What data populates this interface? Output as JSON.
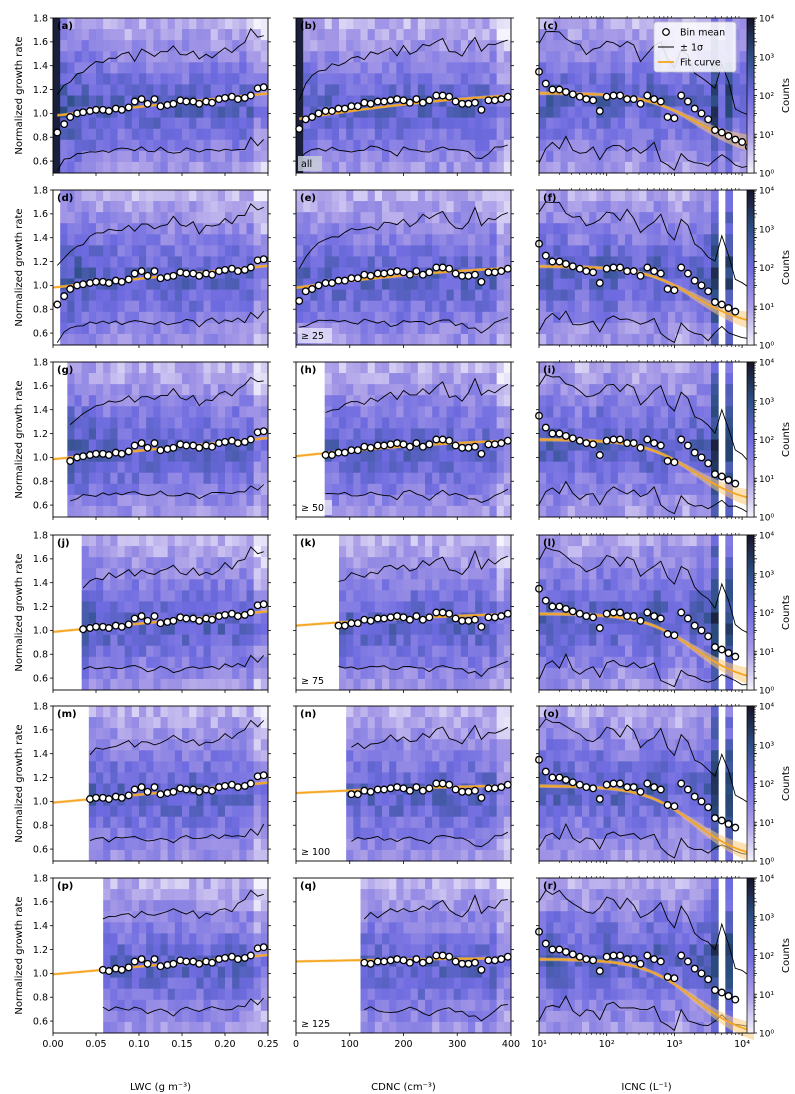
{
  "chart_data": {
    "type": "heatmap",
    "layout": "6 rows x 3 columns",
    "legend": {
      "placement": "top-right of panel (c)",
      "entries": [
        "Bin mean",
        "± 1σ",
        "Fit curve"
      ]
    },
    "colorbar": {
      "label": "Counts",
      "scale": "log",
      "range": [
        1,
        10000
      ],
      "ticks": [
        "10⁰",
        "10¹",
        "10²",
        "10³",
        "10⁴"
      ],
      "colormap": [
        "#f5f3fc",
        "#a99ce7",
        "#6e6be0",
        "#2c4f85",
        "#161328"
      ]
    },
    "colors": {
      "bin_mean_marker": "#ffffff",
      "sigma_line": "#000000",
      "fit_curve": "#f5a623",
      "fit_band": "#f9c979"
    },
    "ylabel": "Normalized growth rate",
    "ylim": [
      0.5,
      1.8
    ],
    "yticks": [
      "0.6",
      "0.8",
      "1.0",
      "1.2",
      "1.4",
      "1.6",
      "1.8"
    ],
    "columns": [
      {
        "xlabel": "LWC (g m⁻³)",
        "xscale": "linear",
        "xlim": [
          0,
          0.25
        ],
        "xticks": [
          "0.00",
          "0.05",
          "0.10",
          "0.15",
          "0.20",
          "0.25"
        ],
        "xtick_values": [
          0,
          0.05,
          0.1,
          0.15,
          0.2,
          0.25
        ]
      },
      {
        "xlabel": "CDNC (cm⁻³)",
        "xscale": "linear",
        "xlim": [
          0,
          400
        ],
        "xticks": [
          "0",
          "100",
          "200",
          "300",
          "400"
        ],
        "xtick_values": [
          0,
          100,
          200,
          300,
          400
        ]
      },
      {
        "xlabel": "ICNC (L⁻¹)",
        "xscale": "log",
        "xlim": [
          10,
          15000
        ],
        "xticks": [
          "10¹",
          "10²",
          "10³",
          "10⁴"
        ],
        "xtick_values": [
          10,
          100,
          1000,
          10000
        ]
      }
    ],
    "rows": [
      {
        "threshold": "all",
        "panels": [
          "(a)",
          "(b)",
          "(c)"
        ]
      },
      {
        "threshold": "≥ 25",
        "panels": [
          "(d)",
          "(e)",
          "(f)"
        ]
      },
      {
        "threshold": "≥ 50",
        "panels": [
          "(g)",
          "(h)",
          "(i)"
        ]
      },
      {
        "threshold": "≥ 75",
        "panels": [
          "(j)",
          "(k)",
          "(l)"
        ]
      },
      {
        "threshold": "≥ 100",
        "panels": [
          "(m)",
          "(n)",
          "(o)"
        ]
      },
      {
        "threshold": "≥ 125",
        "panels": [
          "(p)",
          "(q)",
          "(r)"
        ]
      }
    ],
    "series": {
      "lwc_x": [
        0.005,
        0.013,
        0.02,
        0.028,
        0.035,
        0.043,
        0.05,
        0.058,
        0.065,
        0.073,
        0.08,
        0.088,
        0.095,
        0.103,
        0.11,
        0.118,
        0.125,
        0.133,
        0.14,
        0.148,
        0.155,
        0.163,
        0.17,
        0.178,
        0.185,
        0.193,
        0.2,
        0.208,
        0.215,
        0.223,
        0.23,
        0.238,
        0.245
      ],
      "lwc_mean": [
        0.84,
        0.91,
        0.97,
        1.0,
        1.01,
        1.02,
        1.03,
        1.03,
        1.02,
        1.04,
        1.03,
        1.05,
        1.1,
        1.12,
        1.08,
        1.12,
        1.06,
        1.07,
        1.08,
        1.11,
        1.1,
        1.1,
        1.08,
        1.1,
        1.09,
        1.12,
        1.13,
        1.14,
        1.12,
        1.13,
        1.15,
        1.21,
        1.22
      ],
      "lwc_upper": [
        1.18,
        1.22,
        1.28,
        1.33,
        1.35,
        1.4,
        1.43,
        1.44,
        1.47,
        1.46,
        1.48,
        1.5,
        1.45,
        1.52,
        1.5,
        1.48,
        1.5,
        1.52,
        1.56,
        1.5,
        1.48,
        1.52,
        1.45,
        1.5,
        1.48,
        1.52,
        1.55,
        1.53,
        1.57,
        1.6,
        1.69,
        1.63,
        1.66
      ],
      "lwc_lower": [
        0.52,
        0.6,
        0.64,
        0.66,
        0.67,
        0.68,
        0.67,
        0.7,
        0.68,
        0.7,
        0.69,
        0.69,
        0.7,
        0.7,
        0.67,
        0.68,
        0.7,
        0.68,
        0.66,
        0.68,
        0.7,
        0.69,
        0.67,
        0.7,
        0.71,
        0.69,
        0.7,
        0.71,
        0.71,
        0.7,
        0.78,
        0.72,
        0.79
      ],
      "cdnc_x": [
        6,
        18,
        30,
        42,
        55,
        67,
        79,
        91,
        103,
        115,
        127,
        139,
        152,
        164,
        176,
        188,
        200,
        212,
        224,
        236,
        248,
        261,
        273,
        285,
        297,
        309,
        321,
        333,
        345,
        358,
        370,
        382,
        394
      ],
      "cdnc_mean": [
        0.87,
        0.95,
        0.97,
        1.0,
        1.02,
        1.02,
        1.04,
        1.04,
        1.06,
        1.06,
        1.09,
        1.08,
        1.1,
        1.1,
        1.11,
        1.12,
        1.11,
        1.09,
        1.12,
        1.09,
        1.11,
        1.15,
        1.15,
        1.14,
        1.1,
        1.08,
        1.08,
        1.09,
        1.03,
        1.11,
        1.11,
        1.12,
        1.14
      ],
      "cdnc_upper": [
        1.12,
        1.24,
        1.3,
        1.34,
        1.38,
        1.4,
        1.42,
        1.44,
        1.47,
        1.48,
        1.46,
        1.5,
        1.48,
        1.52,
        1.54,
        1.5,
        1.55,
        1.51,
        1.52,
        1.58,
        1.55,
        1.6,
        1.62,
        1.52,
        1.5,
        1.48,
        1.55,
        1.65,
        1.52,
        1.58,
        1.56,
        1.6,
        1.62
      ],
      "cdnc_lower": [
        0.63,
        0.66,
        0.68,
        0.69,
        0.7,
        0.7,
        0.71,
        0.7,
        0.68,
        0.69,
        0.7,
        0.71,
        0.7,
        0.69,
        0.67,
        0.66,
        0.7,
        0.71,
        0.69,
        0.68,
        0.66,
        0.7,
        0.71,
        0.7,
        0.68,
        0.69,
        0.66,
        0.64,
        0.62,
        0.66,
        0.7,
        0.72,
        0.74
      ],
      "icnc_x": [
        10,
        12.6,
        15.8,
        20,
        25,
        31.6,
        40,
        50,
        63,
        79,
        100,
        126,
        158,
        200,
        251,
        316,
        398,
        501,
        631,
        794,
        1000,
        1259,
        1585,
        1995,
        2512,
        3162,
        3981,
        5012,
        6310,
        7943,
        10000,
        12589
      ],
      "icnc_mean": [
        1.35,
        1.25,
        1.2,
        1.2,
        1.18,
        1.16,
        1.14,
        1.12,
        1.11,
        1.02,
        1.14,
        1.15,
        1.15,
        1.12,
        1.12,
        1.08,
        1.15,
        1.12,
        1.1,
        0.97,
        0.96,
        1.15,
        1.1,
        1.04,
        1.0,
        0.95,
        0.86,
        0.84,
        0.81,
        0.78,
        0.76,
        0.72
      ],
      "icnc_upper": [
        1.6,
        1.7,
        1.68,
        1.68,
        1.62,
        1.58,
        1.56,
        1.5,
        1.52,
        1.56,
        1.62,
        1.6,
        1.55,
        1.62,
        1.58,
        1.45,
        1.5,
        1.55,
        1.6,
        1.45,
        1.4,
        1.55,
        1.5,
        1.35,
        1.3,
        1.25,
        1.2,
        1.4,
        1.25,
        1.05,
        1.02,
        0.98
      ],
      "icnc_lower": [
        0.6,
        0.72,
        0.75,
        0.7,
        0.8,
        0.68,
        0.65,
        0.68,
        0.7,
        0.62,
        0.72,
        0.74,
        0.72,
        0.7,
        0.72,
        0.68,
        0.7,
        0.74,
        0.6,
        0.56,
        0.54,
        0.68,
        0.62,
        0.6,
        0.58,
        0.55,
        0.6,
        0.64,
        0.6,
        0.58,
        0.56,
        0.55
      ]
    }
  }
}
